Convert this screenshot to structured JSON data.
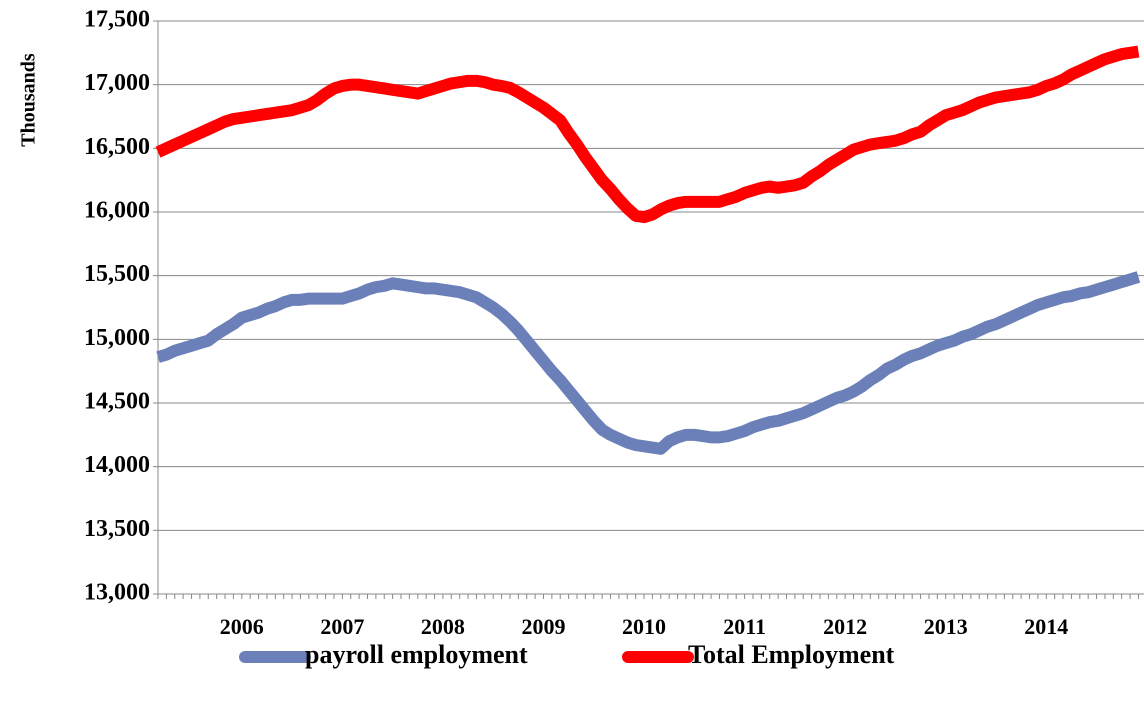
{
  "chart_data": {
    "type": "line",
    "y_label": "Thousands",
    "categories": [
      null,
      null,
      null,
      null,
      null,
      null,
      null,
      null,
      null,
      null,
      "2006",
      null,
      null,
      null,
      null,
      null,
      null,
      null,
      null,
      null,
      null,
      null,
      "2007",
      null,
      null,
      null,
      null,
      null,
      null,
      null,
      null,
      null,
      null,
      null,
      "2008",
      null,
      null,
      null,
      null,
      null,
      null,
      null,
      null,
      null,
      null,
      null,
      "2009",
      null,
      null,
      null,
      null,
      null,
      null,
      null,
      null,
      null,
      null,
      null,
      "2010",
      null,
      null,
      null,
      null,
      null,
      null,
      null,
      null,
      null,
      null,
      null,
      "2011",
      null,
      null,
      null,
      null,
      null,
      null,
      null,
      null,
      null,
      null,
      null,
      "2012",
      null,
      null,
      null,
      null,
      null,
      null,
      null,
      null,
      null,
      null,
      null,
      "2013",
      null,
      null,
      null,
      null,
      null,
      null,
      null,
      null,
      null,
      null,
      null,
      "2014",
      null,
      null,
      null,
      null,
      null,
      null,
      null,
      null,
      null,
      null,
      null
    ],
    "series": [
      {
        "name": "payroll employment",
        "color": "#6b80b8",
        "values": [
          14860,
          14880,
          14910,
          14930,
          14950,
          14970,
          14990,
          15040,
          15080,
          15120,
          15170,
          15190,
          15210,
          15240,
          15260,
          15290,
          15310,
          15310,
          15320,
          15320,
          15320,
          15320,
          15320,
          15340,
          15360,
          15390,
          15410,
          15420,
          15440,
          15430,
          15420,
          15410,
          15400,
          15400,
          15390,
          15380,
          15370,
          15350,
          15330,
          15290,
          15250,
          15200,
          15140,
          15070,
          14990,
          14910,
          14830,
          14750,
          14680,
          14600,
          14520,
          14440,
          14360,
          14290,
          14250,
          14220,
          14190,
          14170,
          14160,
          14150,
          14140,
          14200,
          14230,
          14250,
          14250,
          14240,
          14230,
          14230,
          14240,
          14260,
          14280,
          14310,
          14330,
          14350,
          14360,
          14380,
          14400,
          14420,
          14450,
          14480,
          14510,
          14540,
          14560,
          14590,
          14630,
          14680,
          14720,
          14770,
          14800,
          14840,
          14870,
          14890,
          14920,
          14950,
          14970,
          14990,
          15020,
          15040,
          15070,
          15100,
          15120,
          15150,
          15180,
          15210,
          15240,
          15270,
          15290,
          15310,
          15330,
          15340,
          15360,
          15370,
          15390,
          15410,
          15430,
          15450,
          15470,
          15490
        ]
      },
      {
        "name": "Total Employment",
        "color": "#ff0000",
        "values": [
          16470,
          16500,
          16530,
          16560,
          16590,
          16620,
          16650,
          16680,
          16710,
          16730,
          16740,
          16750,
          16760,
          16770,
          16780,
          16790,
          16800,
          16820,
          16840,
          16880,
          16930,
          16970,
          16990,
          17000,
          17000,
          16990,
          16980,
          16970,
          16960,
          16950,
          16940,
          16930,
          16950,
          16970,
          16990,
          17010,
          17020,
          17030,
          17030,
          17020,
          17000,
          16990,
          16975,
          16940,
          16900,
          16860,
          16820,
          16770,
          16720,
          16620,
          16530,
          16430,
          16340,
          16250,
          16180,
          16100,
          16030,
          15970,
          15960,
          15980,
          16020,
          16050,
          16070,
          16080,
          16080,
          16080,
          16080,
          16080,
          16100,
          16120,
          16150,
          16170,
          16190,
          16200,
          16190,
          16200,
          16210,
          16230,
          16280,
          16320,
          16370,
          16410,
          16450,
          16490,
          16510,
          16530,
          16540,
          16550,
          16560,
          16580,
          16610,
          16630,
          16680,
          16720,
          16760,
          16780,
          16800,
          16830,
          16860,
          16880,
          16900,
          16910,
          16920,
          16930,
          16940,
          16960,
          16990,
          17010,
          17040,
          17080,
          17110,
          17140,
          17170,
          17200,
          17220,
          17240,
          17250,
          17260
        ]
      }
    ],
    "ylim": [
      13000,
      17500
    ],
    "yticks": [
      {
        "value": 13000,
        "label": "13,000"
      },
      {
        "value": 13500,
        "label": "13,500"
      },
      {
        "value": 14000,
        "label": "14,000"
      },
      {
        "value": 14500,
        "label": "14,500"
      },
      {
        "value": 15000,
        "label": "15,000"
      },
      {
        "value": 15500,
        "label": "15,500"
      },
      {
        "value": 16000,
        "label": "16,000"
      },
      {
        "value": 16500,
        "label": "16,500"
      },
      {
        "value": 17000,
        "label": "17,000"
      },
      {
        "value": 17500,
        "label": "17,500"
      }
    ],
    "grid": true,
    "legend": "bottom"
  }
}
